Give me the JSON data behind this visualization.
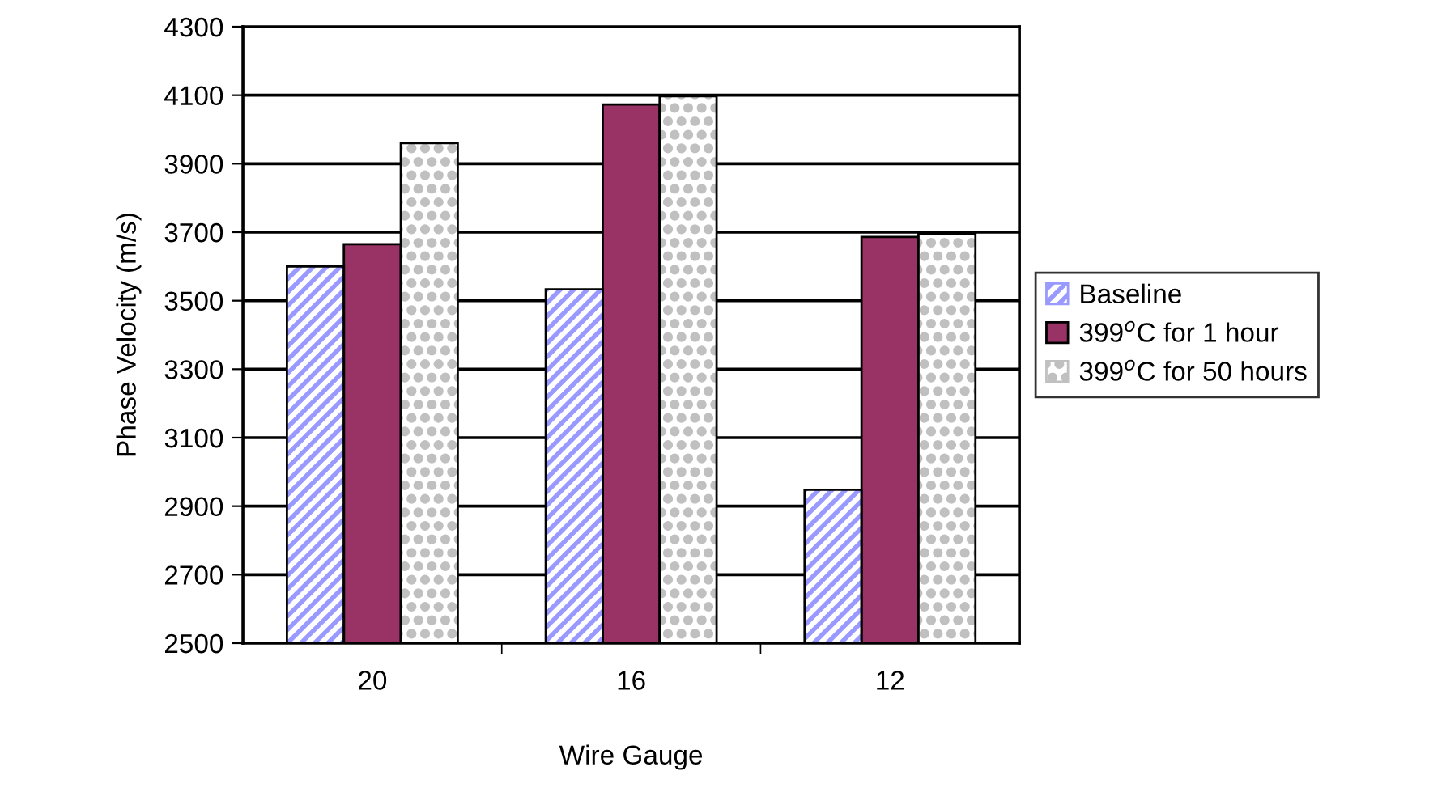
{
  "chart_data": {
    "type": "bar",
    "xlabel": "Wire Gauge",
    "ylabel": "Phase Velocity (m/s)",
    "categories": [
      "20",
      "16",
      "12"
    ],
    "series": [
      {
        "name": "Baseline",
        "color": "#9999ff",
        "values": [
          3600,
          3533,
          2948
        ]
      },
      {
        "name": "399$^{o}$C for 1 hour",
        "color": "#993366",
        "values": [
          3665,
          4073,
          3686
        ]
      },
      {
        "name": "399$^{o}$C for 50 hours",
        "color": "#c0c0c0",
        "values": [
          3960,
          4097,
          3695
        ]
      }
    ],
    "ylim": [
      2500,
      4300
    ],
    "yticks": [
      2500,
      2700,
      2900,
      3100,
      3300,
      3500,
      3700,
      3900,
      4100,
      4300
    ],
    "grid": "y",
    "legend": "right"
  }
}
